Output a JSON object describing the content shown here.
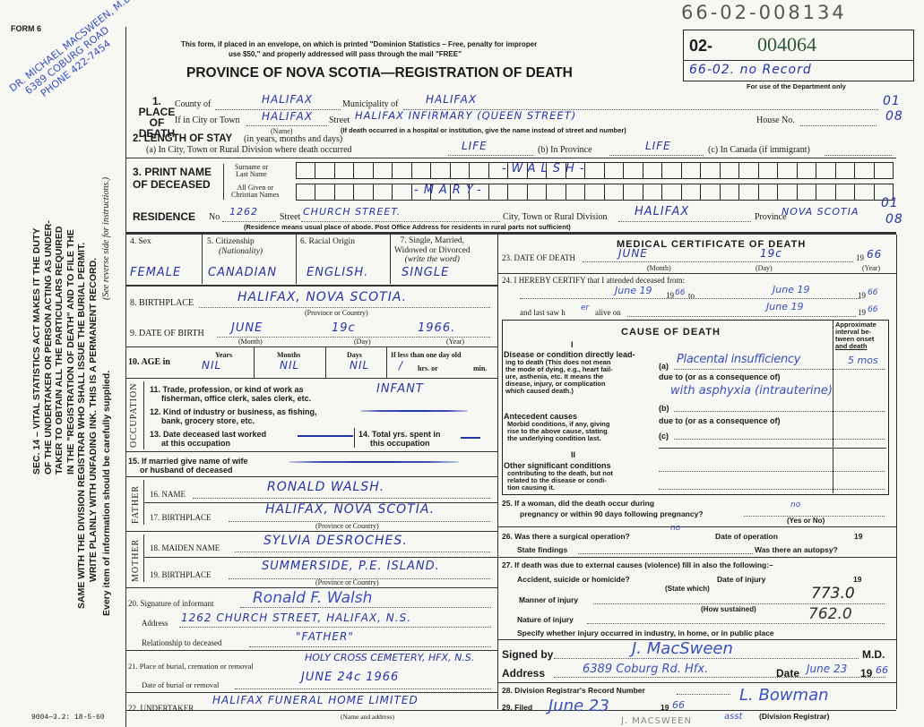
{
  "header": {
    "form_number": "FORM 6",
    "handwritten_record_number": "66-02-008134",
    "notice_line1": "This form, if placed in an envelope, on which is printed \"Dominion Statistics – Free, penalty for improper",
    "notice_line2": "use $50,\" and properly addressed will pass through the mail \"FREE\"",
    "title": "PROVINCE OF NOVA SCOTIA—REGISTRATION OF DEATH",
    "dept_box": {
      "prefix": "02-",
      "number": "004064",
      "handwritten": "66-02. no Record",
      "caption": "For use of the Department only"
    },
    "footer_code": "9004—3.2: 18-5-60"
  },
  "margin": {
    "note_lines": [
      "DR. MICHAEL MACSWEEN, M.D.",
      "6389 COBURG ROAD",
      "PHONE 422-7454"
    ],
    "statute_lines": [
      "SEC. 14 – VITAL STATISTICS ACT MAKES IT THE DUTY",
      "OF THE UNDERTAKER OR PERSON ACTING AS UNDER-",
      "TAKER TO OBTAIN ALL THE PARTICULARS REQUIRED",
      "IN THE \"REGISTRATION OF DEATH\" AND TO FILE THE",
      "SAME WITH THE DIVISION REGISTRAR WHO SHALL ISSUE THE BURIAL PERMIT.",
      "WRITE PLAINLY WITH UNFADING INK. THIS IS A PERMANENT RECORD."
    ],
    "see_reverse": "(See reverse side for instructions.)",
    "every_item": "Every item of information should be carefully supplied."
  },
  "place_of_death": {
    "label": [
      "1. PLACE",
      "OF",
      "DEATH"
    ],
    "county_label": "County of",
    "county": "HALIFAX",
    "municipality_label": "Municipality of",
    "municipality": "HALIFAX",
    "city_label": "If in City or Town",
    "city": "HALIFAX",
    "name_caption": "(Name)",
    "street_label": "Street",
    "street": "HALIFAX INFIRMARY (QUEEN STREET)",
    "house_label": "House No.",
    "hospital_note": "(If death occurred in a hospital or institution, give the name instead of street and number)",
    "code1": "01",
    "code2": "08"
  },
  "length_of_stay": {
    "label": "2. LENGTH OF STAY",
    "label_note": "(in years, months and days)",
    "a_label": "(a) In City, Town or Rural Division where death occurred",
    "a": "LIFE",
    "b_label": "(b) In Province",
    "b": "LIFE",
    "c_label": "(c) In Canada (if immigrant)"
  },
  "name": {
    "label1": "3. PRINT NAME",
    "label2": "OF DECEASED",
    "surname_label": [
      "Surname or",
      "Last Name"
    ],
    "surname": "-WALSH-",
    "given_label": [
      "All Given or",
      "Christian Names"
    ],
    "given": "-MARY-"
  },
  "residence": {
    "label": "RESIDENCE",
    "no_label": "No",
    "no": "1262",
    "street_label": "Street",
    "street": "CHURCH STREET.",
    "city_label": "City, Town or Rural Division",
    "city": "HALIFAX",
    "province_label": "Province",
    "province": "NOVA SCOTIA",
    "code1": "01",
    "code2": "08",
    "note": "(Residence means usual place of abode. Post Office Address for residents in rural parts not sufficient)"
  },
  "personal": {
    "sex_label": "4. Sex",
    "sex": "FEMALE",
    "citizenship_label": "5. Citizenship",
    "citizenship_sub": "(Nationality)",
    "citizenship": "CANADIAN",
    "racial_label": "6. Racial Origin",
    "racial": "ENGLISH.",
    "marital_label": [
      "7. Single, Married,",
      "Widowed or Divorced",
      "(write the word)"
    ],
    "marital": "SINGLE",
    "birthplace_label": "8. BIRTHPLACE",
    "birthplace": "HALIFAX, NOVA SCOTIA.",
    "birthplace_caption": "(Province or Country)",
    "dob_label": "9. DATE OF BIRTH",
    "dob_month": "JUNE",
    "dob_day": "19c",
    "dob_year": "1966.",
    "month_caption": "(Month)",
    "day_caption": "(Day)",
    "year_caption": "(Year)",
    "age_label": "10. AGE in",
    "years_label": "Years",
    "years": "NIL",
    "months_label": "Months",
    "months": "NIL",
    "days_label": "Days",
    "days": "NIL",
    "less_label": "If less than one day old",
    "hrs": "/",
    "hrs_label": "hrs. or",
    "min_label": "min."
  },
  "occupation": {
    "side_label": "OCCUPATION",
    "q11": [
      "11. Trade, profession, or kind of work as",
      "fisherman, office clerk, sales clerk, etc."
    ],
    "a11": "INFANT",
    "q12": [
      "12. Kind of industry or business, as fishing,",
      "bank, grocery store, etc."
    ],
    "q13": [
      "13. Date deceased last worked",
      "at this occupation"
    ],
    "q14": [
      "14. Total yrs. spent in",
      "this occupation"
    ],
    "q15": [
      "15. If married give name of wife",
      "or husband of deceased"
    ]
  },
  "father": {
    "side_label": "FATHER",
    "name_label": "16. NAME",
    "name": "RONALD WALSH.",
    "birthplace_label": "17. BIRTHPLACE",
    "birthplace": "HALIFAX, NOVA SCOTIA.",
    "caption": "(Province or Country)"
  },
  "mother": {
    "side_label": "MOTHER",
    "maiden_label": "18. MAIDEN NAME",
    "maiden": "SYLVIA DESROCHES.",
    "birthplace_label": "19. BIRTHPLACE",
    "birthplace": "SUMMERSIDE, P.E. ISLAND.",
    "caption": "(Province or Country)"
  },
  "informant": {
    "sig_label": "20. Signature of informant",
    "signature": "Ronald F. Walsh",
    "address_label": "Address",
    "address": "1262 CHURCH STREET, HALIFAX, N.S.",
    "relationship_label": "Relationship to deceased",
    "relationship": "\"FATHER\""
  },
  "burial": {
    "place_label": "21. Place of burial, cremation or removal",
    "place": "HOLY CROSS CEMETERY, HFX, N.S.",
    "date_label": "Date of burial or removal",
    "date": "JUNE 24c 1966"
  },
  "undertaker": {
    "label": "22. UNDERTAKER",
    "value": "HALIFAX FUNERAL HOME LIMITED",
    "caption": "(Name and address)"
  },
  "medical": {
    "title": "MEDICAL CERTIFICATE OF DEATH",
    "dod_label": "23. DATE OF DEATH",
    "dod_month": "JUNE",
    "dod_day": "19c",
    "dod_year_prefix": "19",
    "dod_year": "66",
    "month_caption": "(Month)",
    "day_caption": "(Day)",
    "year_caption": "(Year)",
    "certify_label": "24. I HEREBY CERTIFY that I attended deceased from:",
    "from": "June 19",
    "from_year_prefix": "19",
    "from_year": "66",
    "to_label": "to",
    "to": "June 19",
    "to_year": "66",
    "last_saw_label": "and last saw h",
    "last_saw_pronoun": "er",
    "alive_label": "alive on",
    "last_saw": "June 19",
    "last_saw_year": "66"
  },
  "cause": {
    "title": "CAUSE OF DEATH",
    "interval_header": [
      "Approximate",
      "interval be-",
      "tween onset",
      "and death"
    ],
    "part1": "I",
    "direct_title": "Disease or condition directly lead-",
    "direct_desc": [
      "ing to death (This does not mean",
      "the mode of dying, e.g., heart fail-",
      "ure, asthenia, etc. It means the",
      "disease, injury, or complication",
      "which caused death.)"
    ],
    "a_label": "(a)",
    "a": "Placental insufficiency",
    "a_interval": "5 mos",
    "due_to": "due to (or as a consequence of)",
    "a_due": "with asphyxia (intrauterine)",
    "antecedent_title": "Antecedent causes",
    "antecedent_desc": [
      "Morbid conditions, if any, giving",
      "rise to the above cause, stating",
      "the underlying condition last."
    ],
    "b_label": "(b)",
    "c_label": "(c)",
    "part2": "II",
    "other_title": "Other significant conditions",
    "other_desc": [
      "contributing to the death, but not",
      "related to the disease or condi-",
      "tion causing it."
    ]
  },
  "questions": {
    "q25": [
      "25. If a woman, did the death occur during",
      "pregnancy or within 90 days following pregnancy?"
    ],
    "a25": "no",
    "yes_no": "(Yes or No)",
    "q26": "26. Was there a surgical operation?",
    "a26": "no",
    "op_date_label": "Date of operation",
    "op_year": "19",
    "findings_label": "State findings",
    "autopsy_label": "Was there an autopsy?",
    "q27": "27. If death was due to external causes (violence) fill in also the following:–",
    "accident_label": "Accident, suicide or homicide?",
    "state_which": "(State which)",
    "injury_date_label": "Date of injury",
    "injury_year": "19",
    "manner_label": "Manner of injury",
    "manner_code": "773.0",
    "how_sustained": "(How sustained)",
    "nature_label": "Nature of injury",
    "nature_code": "762.0",
    "specify_label": "Specify whether injury occurred in industry, in home, or in public place"
  },
  "signature": {
    "signed_label": "Signed by",
    "signed": "J. MacSween",
    "md": "M.D.",
    "address_label": "Address",
    "address": "6389 Coburg Rd. Hfx.",
    "date_label": "Date",
    "date": "June 23",
    "year_prefix": "19",
    "year": "66"
  },
  "registrar": {
    "q28": "28. Division Registrar's Record Number",
    "q29": "29. Filed",
    "filed": "June 23",
    "year_prefix": "19",
    "year": "66",
    "registrar_signature": "L. Bowman",
    "asst": "asst",
    "caption": "(Division Registrar)",
    "stamp": "J. MACSWEEN"
  }
}
